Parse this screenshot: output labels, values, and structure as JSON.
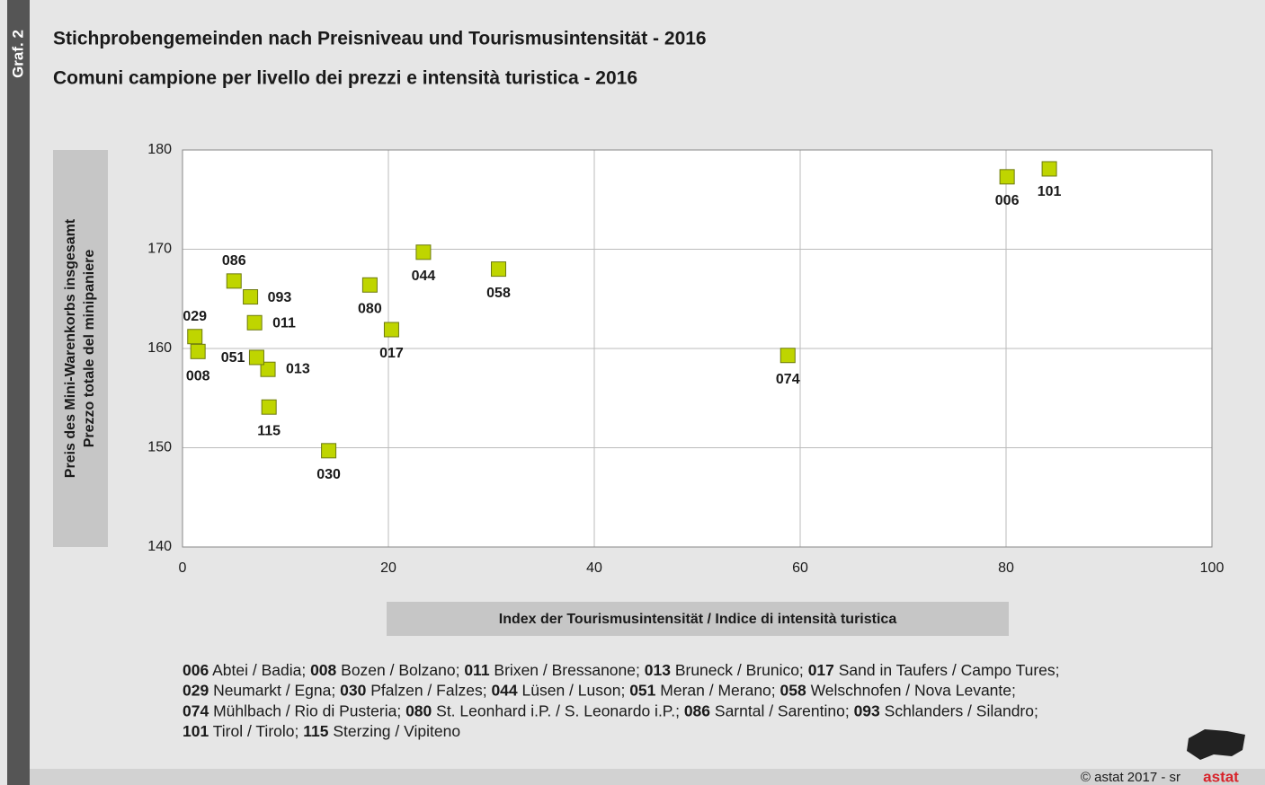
{
  "side_label": "Graf. 2",
  "chart_data": {
    "type": "scatter",
    "title": "Stichprobengemeinden nach Preisniveau und Tourismusintensität - 2016",
    "subtitle": "Comuni campione per livello dei prezzi e intensità turistica - 2016",
    "ylabel": [
      "Preis des Mini-Warenkorbs insgesamt",
      "Prezzo totale del minipaniere"
    ],
    "xlabel": "Index der Tourismusintensität / Indice di intensità turistica",
    "labels": [
      "006",
      "008",
      "011",
      "013",
      "017",
      "029",
      "030",
      "044",
      "051",
      "058",
      "074",
      "080",
      "086",
      "093",
      "101",
      "115"
    ],
    "x": [
      80.1,
      1.5,
      7.0,
      8.3,
      20.3,
      1.2,
      14.2,
      23.4,
      7.2,
      30.7,
      58.8,
      18.2,
      5.0,
      6.6,
      84.2,
      8.4
    ],
    "y": [
      177.3,
      159.7,
      162.6,
      157.9,
      161.9,
      161.2,
      149.7,
      169.7,
      159.1,
      168.0,
      159.3,
      166.4,
      166.8,
      165.2,
      178.1,
      154.1
    ],
    "color": "#bfd500",
    "xlim": [
      0,
      100
    ],
    "xticks": [
      0,
      20,
      40,
      60,
      80,
      100
    ],
    "ylim": [
      140,
      180
    ],
    "yticks": [
      140,
      150,
      160,
      170,
      180
    ],
    "grid": true
  },
  "legend_lines": [
    [
      {
        "code": "006",
        "name": " Abtei / Badia;"
      },
      {
        "code": "008",
        "name": " Bozen / Bolzano;"
      },
      {
        "code": "011",
        "name": " Brixen / Bressanone;"
      },
      {
        "code": "013",
        "name": " Bruneck / Brunico;"
      },
      {
        "code": "017",
        "name": " Sand in Taufers / Campo Tures;"
      }
    ],
    [
      {
        "code": "029",
        "name": " Neumarkt / Egna;"
      },
      {
        "code": "030",
        "name": " Pfalzen / Falzes;"
      },
      {
        "code": "044",
        "name": " Lüsen / Luson;"
      },
      {
        "code": "051",
        "name": " Meran / Merano;"
      },
      {
        "code": "058",
        "name": " Welschnofen / Nova Levante;"
      }
    ],
    [
      {
        "code": "074",
        "name": " Mühlbach / Rio di Pusteria;"
      },
      {
        "code": "080",
        "name": " St. Leonhard i.P. / S. Leonardo i.P.;"
      },
      {
        "code": "086",
        "name": " Sarntal / Sarentino;"
      },
      {
        "code": "093",
        "name": " Schlanders / Silandro;"
      }
    ],
    [
      {
        "code": "101",
        "name": " Tirol / Tirolo;"
      },
      {
        "code": "115",
        "name": " Sterzing / Vipiteno"
      }
    ]
  ],
  "footer": "©  astat 2017 - sr",
  "logo": "astat"
}
